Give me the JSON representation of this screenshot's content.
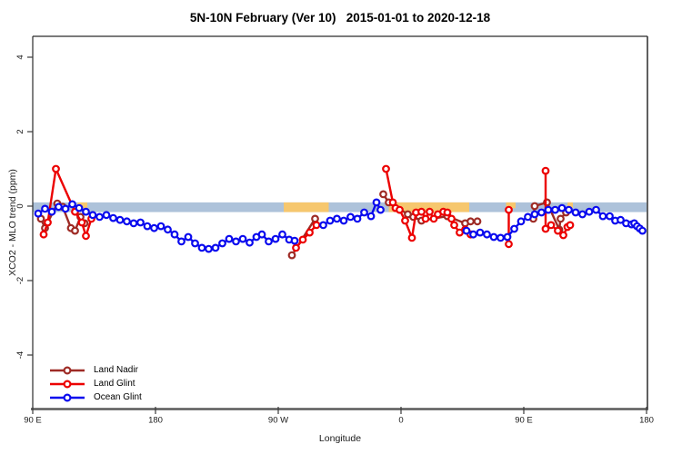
{
  "title": "5N-10N February (Ver 10)   2015-01-01 to 2020-12-18",
  "axes": {
    "x": {
      "label": "Longitude"
    },
    "y": {
      "label": "XCO2 - MLO trend (ppm)"
    }
  },
  "legend": [
    {
      "label": "Land Nadir",
      "color": "#9E2B25"
    },
    {
      "label": "Land Glint",
      "color": "#EC0000"
    },
    {
      "label": "Ocean Glint",
      "color": "#0A0AEE"
    }
  ],
  "chart_data": {
    "type": "line",
    "title": "5N-10N February (Ver 10)   2015-01-01 to 2020-12-18",
    "xlabel": "Longitude",
    "ylabel": "XCO2 - MLO trend (ppm)",
    "x_axis": {
      "unit": "degrees eastward from 90E (axis wraps the globe 90E..180..90W..0..90E..180)",
      "min": 0,
      "max": 450,
      "ticks": [
        {
          "pos": 0,
          "label": "90 E"
        },
        {
          "pos": 90,
          "label": "180"
        },
        {
          "pos": 180,
          "label": "90 W"
        },
        {
          "pos": 270,
          "label": "0"
        },
        {
          "pos": 360,
          "label": "90 E"
        },
        {
          "pos": 450,
          "label": "180"
        }
      ]
    },
    "y_axis": {
      "unit": "ppm",
      "min": -5.5,
      "max": 4.5,
      "ticks": [
        {
          "pos": 4,
          "label": "4"
        },
        {
          "pos": 2,
          "label": "2"
        },
        {
          "pos": 0,
          "label": "0"
        },
        {
          "pos": -2,
          "label": "-2"
        },
        {
          "pos": -4,
          "label": "-4"
        }
      ]
    },
    "zero_band": {
      "color": "#ADC2DA",
      "y_from": 0.1,
      "y_to": -0.16,
      "land_color": "#F6C76E",
      "land_patches_deg": [
        [
          33,
          40
        ],
        [
          184,
          217
        ],
        [
          261,
          320
        ],
        [
          347,
          354
        ],
        [
          392,
          396
        ]
      ]
    },
    "grid": false,
    "legend_position": "bottom-left",
    "series": [
      {
        "name": "Land Nadir",
        "color": "#9E2B25",
        "points": [
          [
            6,
            -0.34
          ],
          [
            9,
            -0.59
          ],
          [
            18,
            0.07
          ],
          [
            22,
            -0.02
          ],
          [
            28,
            -0.59
          ],
          [
            31,
            -0.66
          ],
          [
            35,
            -0.29
          ],
          [
            38,
            -0.46
          ],
          [
            190,
            -1.32
          ],
          [
            207,
            -0.34
          ],
          [
            257,
            0.32
          ],
          [
            261,
            0.1
          ],
          [
            275,
            -0.22
          ],
          [
            279,
            -0.29
          ],
          [
            285,
            -0.39
          ],
          [
            304,
            -0.27
          ],
          [
            317,
            -0.46
          ],
          [
            321,
            -0.41
          ],
          [
            326,
            -0.41
          ],
          [
            367,
            -0.34
          ],
          [
            368,
            0.0
          ],
          [
            377,
            0.1
          ],
          [
            386,
            -0.63
          ],
          [
            387,
            -0.34
          ],
          [
            391,
            -0.17
          ]
        ]
      },
      {
        "name": "Land Glint",
        "color": "#EC0000",
        "points": [
          [
            8,
            -0.76
          ],
          [
            11,
            -0.44
          ],
          [
            17,
            1.0
          ],
          [
            31,
            -0.15
          ],
          [
            36,
            -0.44
          ],
          [
            39,
            -0.8
          ],
          [
            43,
            -0.34
          ],
          [
            193,
            -1.12
          ],
          [
            198,
            -0.9
          ],
          [
            203,
            -0.71
          ],
          [
            208,
            -0.51
          ],
          [
            259,
            1.0
          ],
          [
            264,
            0.1
          ],
          [
            266,
            -0.05
          ],
          [
            269,
            -0.1
          ],
          [
            273,
            -0.39
          ],
          [
            278,
            -0.85
          ],
          [
            281,
            -0.17
          ],
          [
            285,
            -0.15
          ],
          [
            288,
            -0.34
          ],
          [
            291,
            -0.15
          ],
          [
            294,
            -0.34
          ],
          [
            297,
            -0.22
          ],
          [
            301,
            -0.15
          ],
          [
            304,
            -0.17
          ],
          [
            307,
            -0.34
          ],
          [
            309,
            -0.51
          ],
          [
            313,
            -0.71
          ],
          [
            317,
            -0.63
          ],
          [
            321,
            -0.76
          ],
          [
            349,
            -0.1
          ],
          [
            349,
            -1.02
          ],
          [
            376,
            0.95
          ],
          [
            376,
            -0.61
          ],
          [
            380,
            -0.51
          ],
          [
            385,
            -0.66
          ],
          [
            389,
            -0.78
          ],
          [
            392,
            -0.56
          ],
          [
            394,
            -0.51
          ]
        ]
      },
      {
        "name": "Ocean Glint",
        "color": "#0A0AEE",
        "points": [
          [
            4,
            -0.2
          ],
          [
            9,
            -0.07
          ],
          [
            14,
            -0.15
          ],
          [
            19,
            -0.02
          ],
          [
            24,
            -0.07
          ],
          [
            29,
            0.05
          ],
          [
            34,
            -0.05
          ],
          [
            39,
            -0.15
          ],
          [
            44,
            -0.24
          ],
          [
            49,
            -0.29
          ],
          [
            54,
            -0.24
          ],
          [
            59,
            -0.32
          ],
          [
            64,
            -0.37
          ],
          [
            69,
            -0.41
          ],
          [
            74,
            -0.46
          ],
          [
            79,
            -0.44
          ],
          [
            84,
            -0.54
          ],
          [
            89,
            -0.59
          ],
          [
            94,
            -0.54
          ],
          [
            99,
            -0.63
          ],
          [
            104,
            -0.76
          ],
          [
            109,
            -0.95
          ],
          [
            114,
            -0.83
          ],
          [
            119,
            -1.0
          ],
          [
            124,
            -1.12
          ],
          [
            129,
            -1.15
          ],
          [
            134,
            -1.12
          ],
          [
            139,
            -1.0
          ],
          [
            144,
            -0.88
          ],
          [
            149,
            -0.95
          ],
          [
            154,
            -0.88
          ],
          [
            159,
            -0.98
          ],
          [
            164,
            -0.83
          ],
          [
            168,
            -0.76
          ],
          [
            173,
            -0.95
          ],
          [
            178,
            -0.88
          ],
          [
            183,
            -0.76
          ],
          [
            188,
            -0.9
          ],
          [
            192,
            -0.93
          ],
          [
            213,
            -0.51
          ],
          [
            218,
            -0.39
          ],
          [
            223,
            -0.34
          ],
          [
            228,
            -0.39
          ],
          [
            233,
            -0.29
          ],
          [
            238,
            -0.34
          ],
          [
            243,
            -0.17
          ],
          [
            248,
            -0.27
          ],
          [
            252,
            0.1
          ],
          [
            255,
            -0.1
          ],
          [
            318,
            -0.66
          ],
          [
            323,
            -0.76
          ],
          [
            328,
            -0.71
          ],
          [
            333,
            -0.76
          ],
          [
            338,
            -0.83
          ],
          [
            343,
            -0.85
          ],
          [
            348,
            -0.83
          ],
          [
            353,
            -0.61
          ],
          [
            358,
            -0.41
          ],
          [
            363,
            -0.29
          ],
          [
            368,
            -0.22
          ],
          [
            373,
            -0.17
          ],
          [
            378,
            -0.1
          ],
          [
            383,
            -0.1
          ],
          [
            388,
            -0.05
          ],
          [
            393,
            -0.1
          ],
          [
            398,
            -0.17
          ],
          [
            403,
            -0.22
          ],
          [
            408,
            -0.15
          ],
          [
            413,
            -0.1
          ],
          [
            418,
            -0.27
          ],
          [
            423,
            -0.27
          ],
          [
            427,
            -0.39
          ],
          [
            431,
            -0.37
          ],
          [
            435,
            -0.46
          ],
          [
            439,
            -0.49
          ],
          [
            441,
            -0.46
          ],
          [
            443,
            -0.54
          ],
          [
            445,
            -0.6
          ],
          [
            447,
            -0.66
          ]
        ]
      }
    ]
  }
}
